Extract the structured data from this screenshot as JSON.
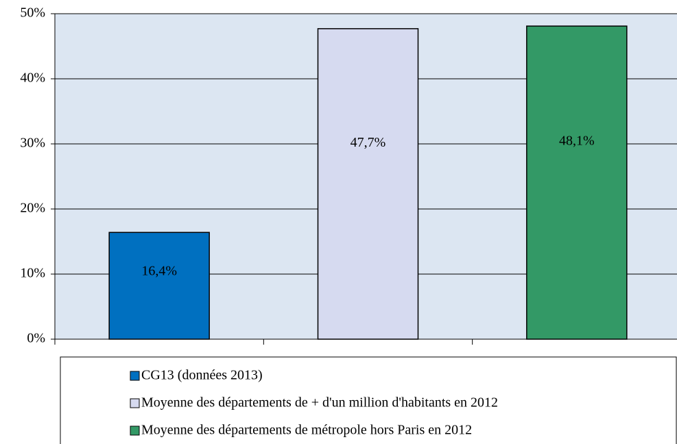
{
  "chart_data": {
    "type": "bar",
    "categories": [
      null,
      null,
      null
    ],
    "series": [
      {
        "name": "CG13 (données 2013)",
        "color": "#0070c0",
        "values": [
          16.4,
          null,
          null
        ],
        "value_labels": [
          "16,4%",
          null,
          null
        ]
      },
      {
        "name": "Moyenne des départements de + d'un million d'habitants en 2012",
        "color": "#d6daf0",
        "values": [
          null,
          47.7,
          null
        ],
        "value_labels": [
          null,
          "47,7%",
          null
        ]
      },
      {
        "name": "Moyenne des départements de métropole hors Paris en 2012",
        "color": "#339966",
        "values": [
          null,
          null,
          48.1
        ],
        "value_labels": [
          null,
          null,
          "48,1%"
        ]
      }
    ],
    "ylim": [
      0,
      50
    ],
    "yticks": [
      {
        "value": 0,
        "label": "0%"
      },
      {
        "value": 10,
        "label": "10%"
      },
      {
        "value": 20,
        "label": "20%"
      },
      {
        "value": 30,
        "label": "30%"
      },
      {
        "value": 40,
        "label": "40%"
      },
      {
        "value": 50,
        "label": "50%"
      }
    ],
    "grid": true,
    "plot_background": "#dce6f2",
    "legend": "bottom"
  }
}
